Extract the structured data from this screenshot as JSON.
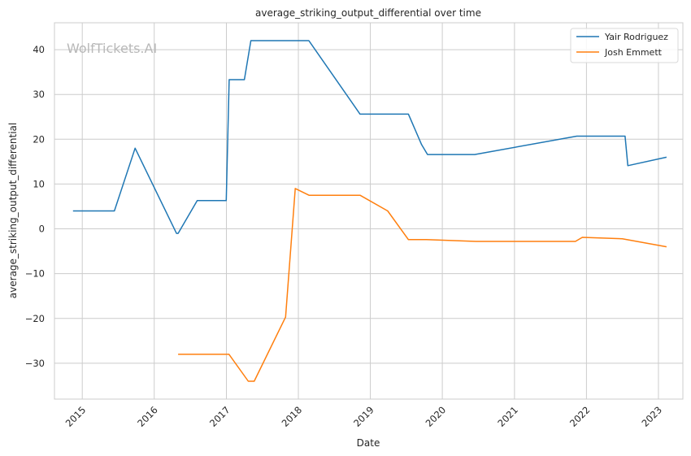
{
  "chart_data": {
    "type": "line",
    "title": "average_striking_output_differential over time",
    "xlabel": "Date",
    "ylabel": "average_striking_output_differential",
    "watermark": "WolfTickets.AI",
    "x_ticks": [
      "2015",
      "2016",
      "2017",
      "2018",
      "2019",
      "2020",
      "2021",
      "2022",
      "2023"
    ],
    "y_ticks": [
      -30,
      -20,
      -10,
      0,
      10,
      20,
      30,
      40
    ],
    "xlim": [
      "2014-08-13",
      "2023-05-05"
    ],
    "ylim": [
      -38,
      46
    ],
    "grid": true,
    "legend_position": "top-right",
    "colors": {
      "series_0": "#1f77b4",
      "series_1": "#ff7f0e",
      "grid": "#cccccc",
      "axes": "#cccccc"
    },
    "series": [
      {
        "name": "Yair Rodriguez",
        "points": [
          [
            "2014-11-15",
            4.0
          ],
          [
            "2015-06-13",
            4.0
          ],
          [
            "2015-09-26",
            18.0
          ],
          [
            "2016-04-23",
            -1.0
          ],
          [
            "2016-05-01",
            -1.0
          ],
          [
            "2016-08-06",
            6.3
          ],
          [
            "2016-12-31",
            6.3
          ],
          [
            "2017-01-15",
            33.3
          ],
          [
            "2017-04-02",
            33.3
          ],
          [
            "2017-05-05",
            42.0
          ],
          [
            "2018-02-23",
            42.0
          ],
          [
            "2018-11-10",
            25.6
          ],
          [
            "2019-07-13",
            25.6
          ],
          [
            "2019-09-18",
            18.8
          ],
          [
            "2019-10-18",
            16.6
          ],
          [
            "2020-06-13",
            16.6
          ],
          [
            "2021-11-13",
            20.7
          ],
          [
            "2022-07-16",
            20.7
          ],
          [
            "2022-07-30",
            14.1
          ],
          [
            "2023-02-11",
            16.0
          ]
        ]
      },
      {
        "name": "Josh Emmett",
        "points": [
          [
            "2016-05-01",
            -28.0
          ],
          [
            "2017-01-14",
            -28.0
          ],
          [
            "2017-04-22",
            -34.0
          ],
          [
            "2017-05-22",
            -34.0
          ],
          [
            "2017-10-28",
            -19.7
          ],
          [
            "2017-12-16",
            9.0
          ],
          [
            "2018-02-24",
            7.5
          ],
          [
            "2018-11-10",
            7.5
          ],
          [
            "2019-03-30",
            4.0
          ],
          [
            "2019-07-13",
            -2.4
          ],
          [
            "2019-10-12",
            -2.4
          ],
          [
            "2020-06-20",
            -2.8
          ],
          [
            "2021-11-06",
            -2.8
          ],
          [
            "2021-12-11",
            -1.9
          ],
          [
            "2022-07-02",
            -2.2
          ],
          [
            "2023-02-11",
            -4.0
          ]
        ]
      }
    ]
  }
}
